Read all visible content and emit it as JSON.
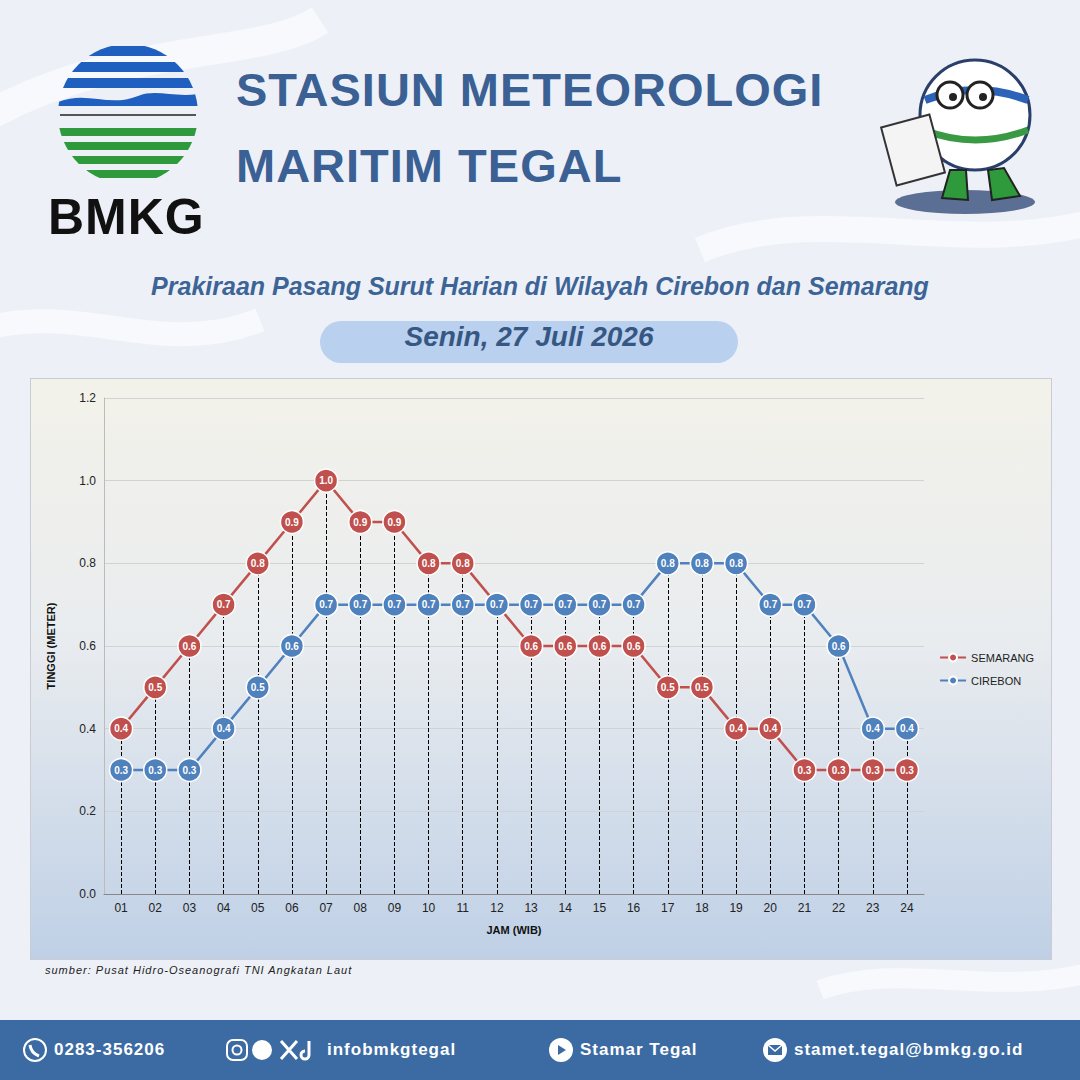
{
  "header": {
    "logo_text": "BMKG",
    "title": [
      "STASIUN METEOROLOGI",
      "MARITIM TEGAL"
    ]
  },
  "chart_data": {
    "type": "line",
    "title": "Prakiraan Pasang Surut Harian di Wilayah Cirebon dan Semarang",
    "subtitle": "Senin, 27 Juli 2026",
    "x_label": "JAM (WIB)",
    "y_label": "TINGGI (METER)",
    "categories": [
      "01",
      "02",
      "03",
      "04",
      "05",
      "06",
      "07",
      "08",
      "09",
      "10",
      "11",
      "12",
      "13",
      "14",
      "15",
      "16",
      "17",
      "18",
      "19",
      "20",
      "21",
      "22",
      "23",
      "24"
    ],
    "series": [
      {
        "name": "SEMARANG",
        "color": "#c0504d",
        "values": [
          0.4,
          0.5,
          0.6,
          0.7,
          0.8,
          0.9,
          1.0,
          0.9,
          0.9,
          0.8,
          0.8,
          0.7,
          0.6,
          0.6,
          0.6,
          0.6,
          0.5,
          0.5,
          0.4,
          0.4,
          0.3,
          0.3,
          0.3,
          0.3
        ],
        "value_labels": [
          "0.4",
          "0.5",
          "0.6",
          "0.7",
          "0.8",
          "0.9",
          "1.0",
          "0.9",
          "0.9",
          "0.8",
          "0.8",
          "0.7",
          "0.6",
          "0.6",
          "0.6",
          "0.6",
          "0.5",
          "0.5",
          "0.4",
          "0.4",
          "0.3",
          "0.3",
          "0.3",
          "0.3"
        ]
      },
      {
        "name": "CIREBON",
        "color": "#4f81bd",
        "values": [
          0.3,
          0.3,
          0.3,
          0.4,
          0.5,
          0.6,
          0.7,
          0.7,
          0.7,
          0.7,
          0.7,
          0.7,
          0.7,
          0.7,
          0.7,
          0.7,
          0.8,
          0.8,
          0.8,
          0.7,
          0.7,
          0.6,
          0.4,
          0.4
        ],
        "value_labels": [
          "0.3",
          "0.3",
          "0.3",
          "0.4",
          "0.5",
          "0.6",
          "0.7",
          "0.7",
          "0.7",
          "0.7",
          "0.7",
          "0.7",
          "0.7",
          "0.7",
          "0.7",
          "0.7",
          "0.8",
          "0.8",
          "0.8",
          "0.7",
          "0.7",
          "0.6",
          "0.4",
          "0.4"
        ]
      }
    ],
    "ylim": [
      0,
      1.2
    ],
    "yticks": [
      {
        "value": 0,
        "label": "0.0"
      },
      0.2,
      0.4,
      0.6,
      0.8,
      {
        "value": 1,
        "label": "1.0"
      },
      1.2
    ],
    "grid": true,
    "legend": "right",
    "data_labels": true,
    "marker": "circle"
  },
  "source": "sumber: Pusat Hidro-Oseanografi TNI Angkatan Laut",
  "footer": {
    "phone": "0283-356206",
    "social": "infobmkgtegal",
    "youtube": "Stamar Tegal",
    "email": "stamet.tegal@bmkg.go.id"
  }
}
